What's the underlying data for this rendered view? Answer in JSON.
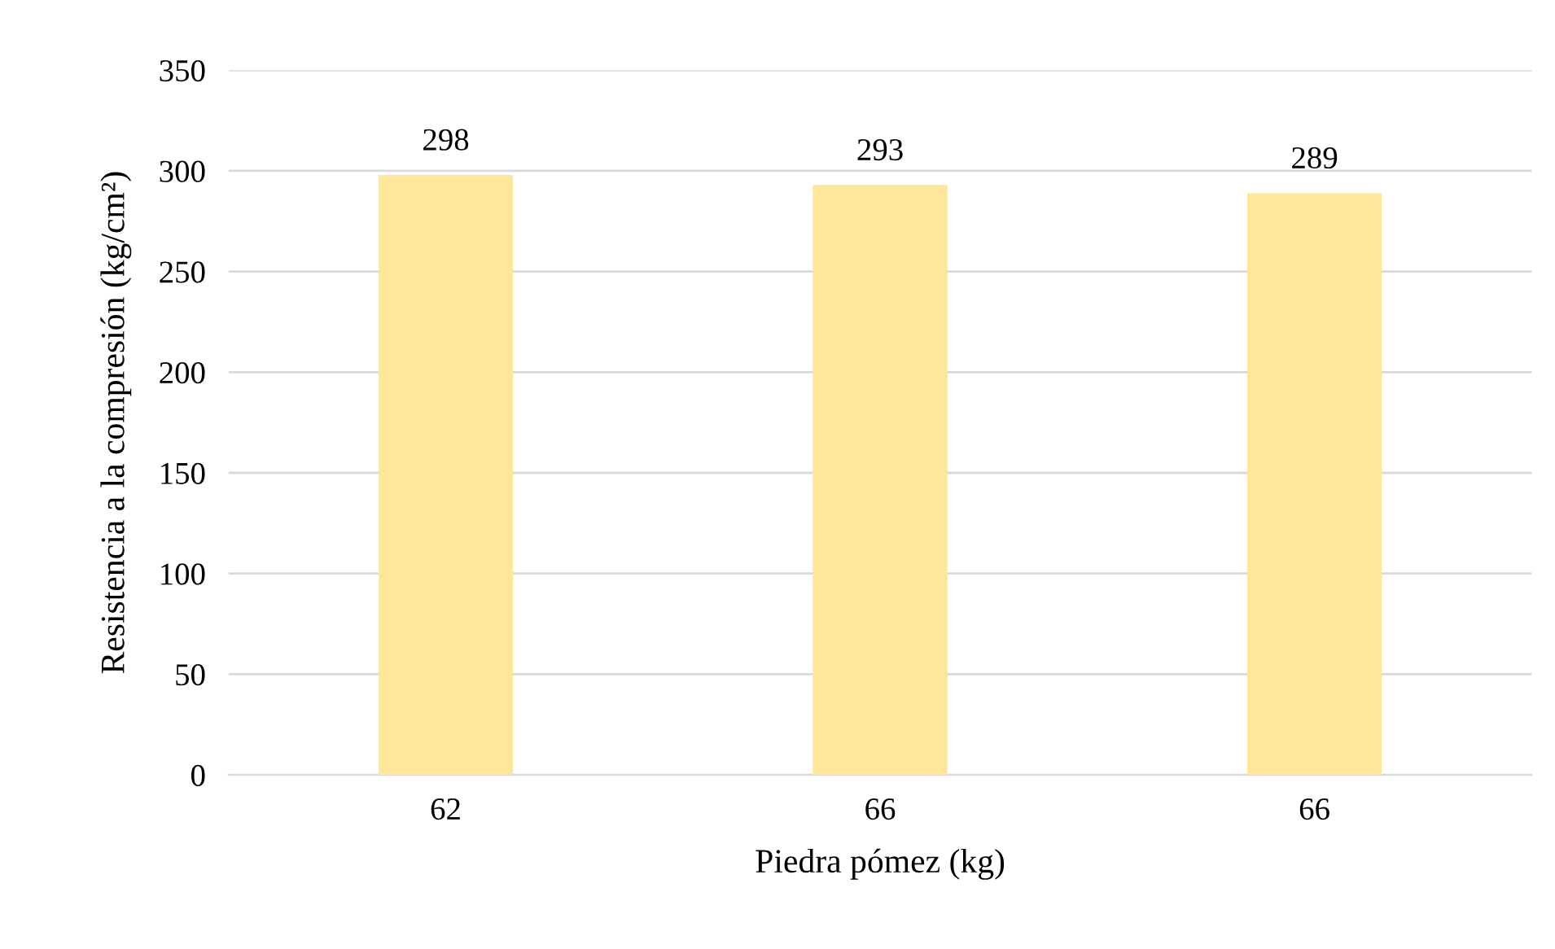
{
  "chart_data": {
    "type": "bar",
    "xlabel": "Piedra pómez (kg)",
    "ylabel": "Resistencia a la compresión (kg/cm²)",
    "categories": [
      "62",
      "66",
      "66"
    ],
    "values": [
      298,
      293,
      289
    ],
    "color": "#ffe699",
    "ylim": [
      0,
      350
    ],
    "yticks": [
      0,
      50,
      100,
      150,
      200,
      250,
      300,
      350
    ],
    "grid": "y",
    "data_labels": true
  }
}
